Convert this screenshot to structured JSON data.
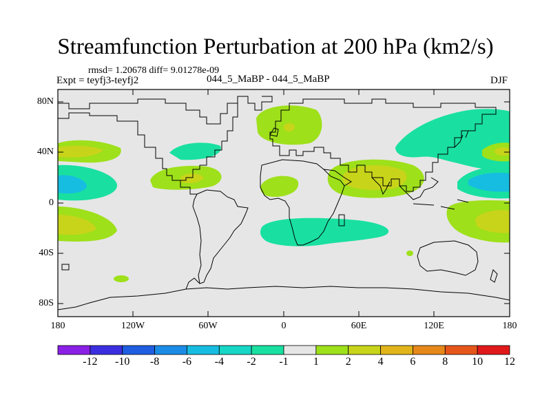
{
  "header": {
    "title": "Streamfunction Perturbation at 200 hPa (km2/s)",
    "rmsd_line": "rmsd= 1.20678 diff= 9.01278e-09",
    "expt_line": "Expt = teyfj3-teyfj2",
    "period_line": "044_5_MaBP - 044_5_MaBP",
    "season": "DJF"
  },
  "axes": {
    "lat_labels": [
      "80N",
      "40N",
      "0",
      "40S",
      "80S"
    ],
    "lon_labels": [
      "180",
      "120W",
      "60W",
      "0",
      "60E",
      "120E",
      "180"
    ]
  },
  "colorbar": {
    "labels": [
      "-12",
      "-10",
      "-8",
      "-6",
      "-4",
      "-2",
      "-1",
      "1",
      "2",
      "4",
      "6",
      "8",
      "10",
      "12"
    ],
    "colors": [
      "#8a1fe6",
      "#3b2ee0",
      "#1f5ee0",
      "#1a8ce6",
      "#16bde0",
      "#16d6c6",
      "#19e0a0",
      "#e6e6e6",
      "#9ee01a",
      "#c8d41a",
      "#e0b41a",
      "#e6891a",
      "#e6561a",
      "#e0191a"
    ]
  },
  "map_colors": {
    "land_bg": "#e6e6e6",
    "neg1": "#19e0a0",
    "neg2": "#16bde0",
    "pos1": "#9ee01a",
    "pos2": "#c8d41a"
  }
}
